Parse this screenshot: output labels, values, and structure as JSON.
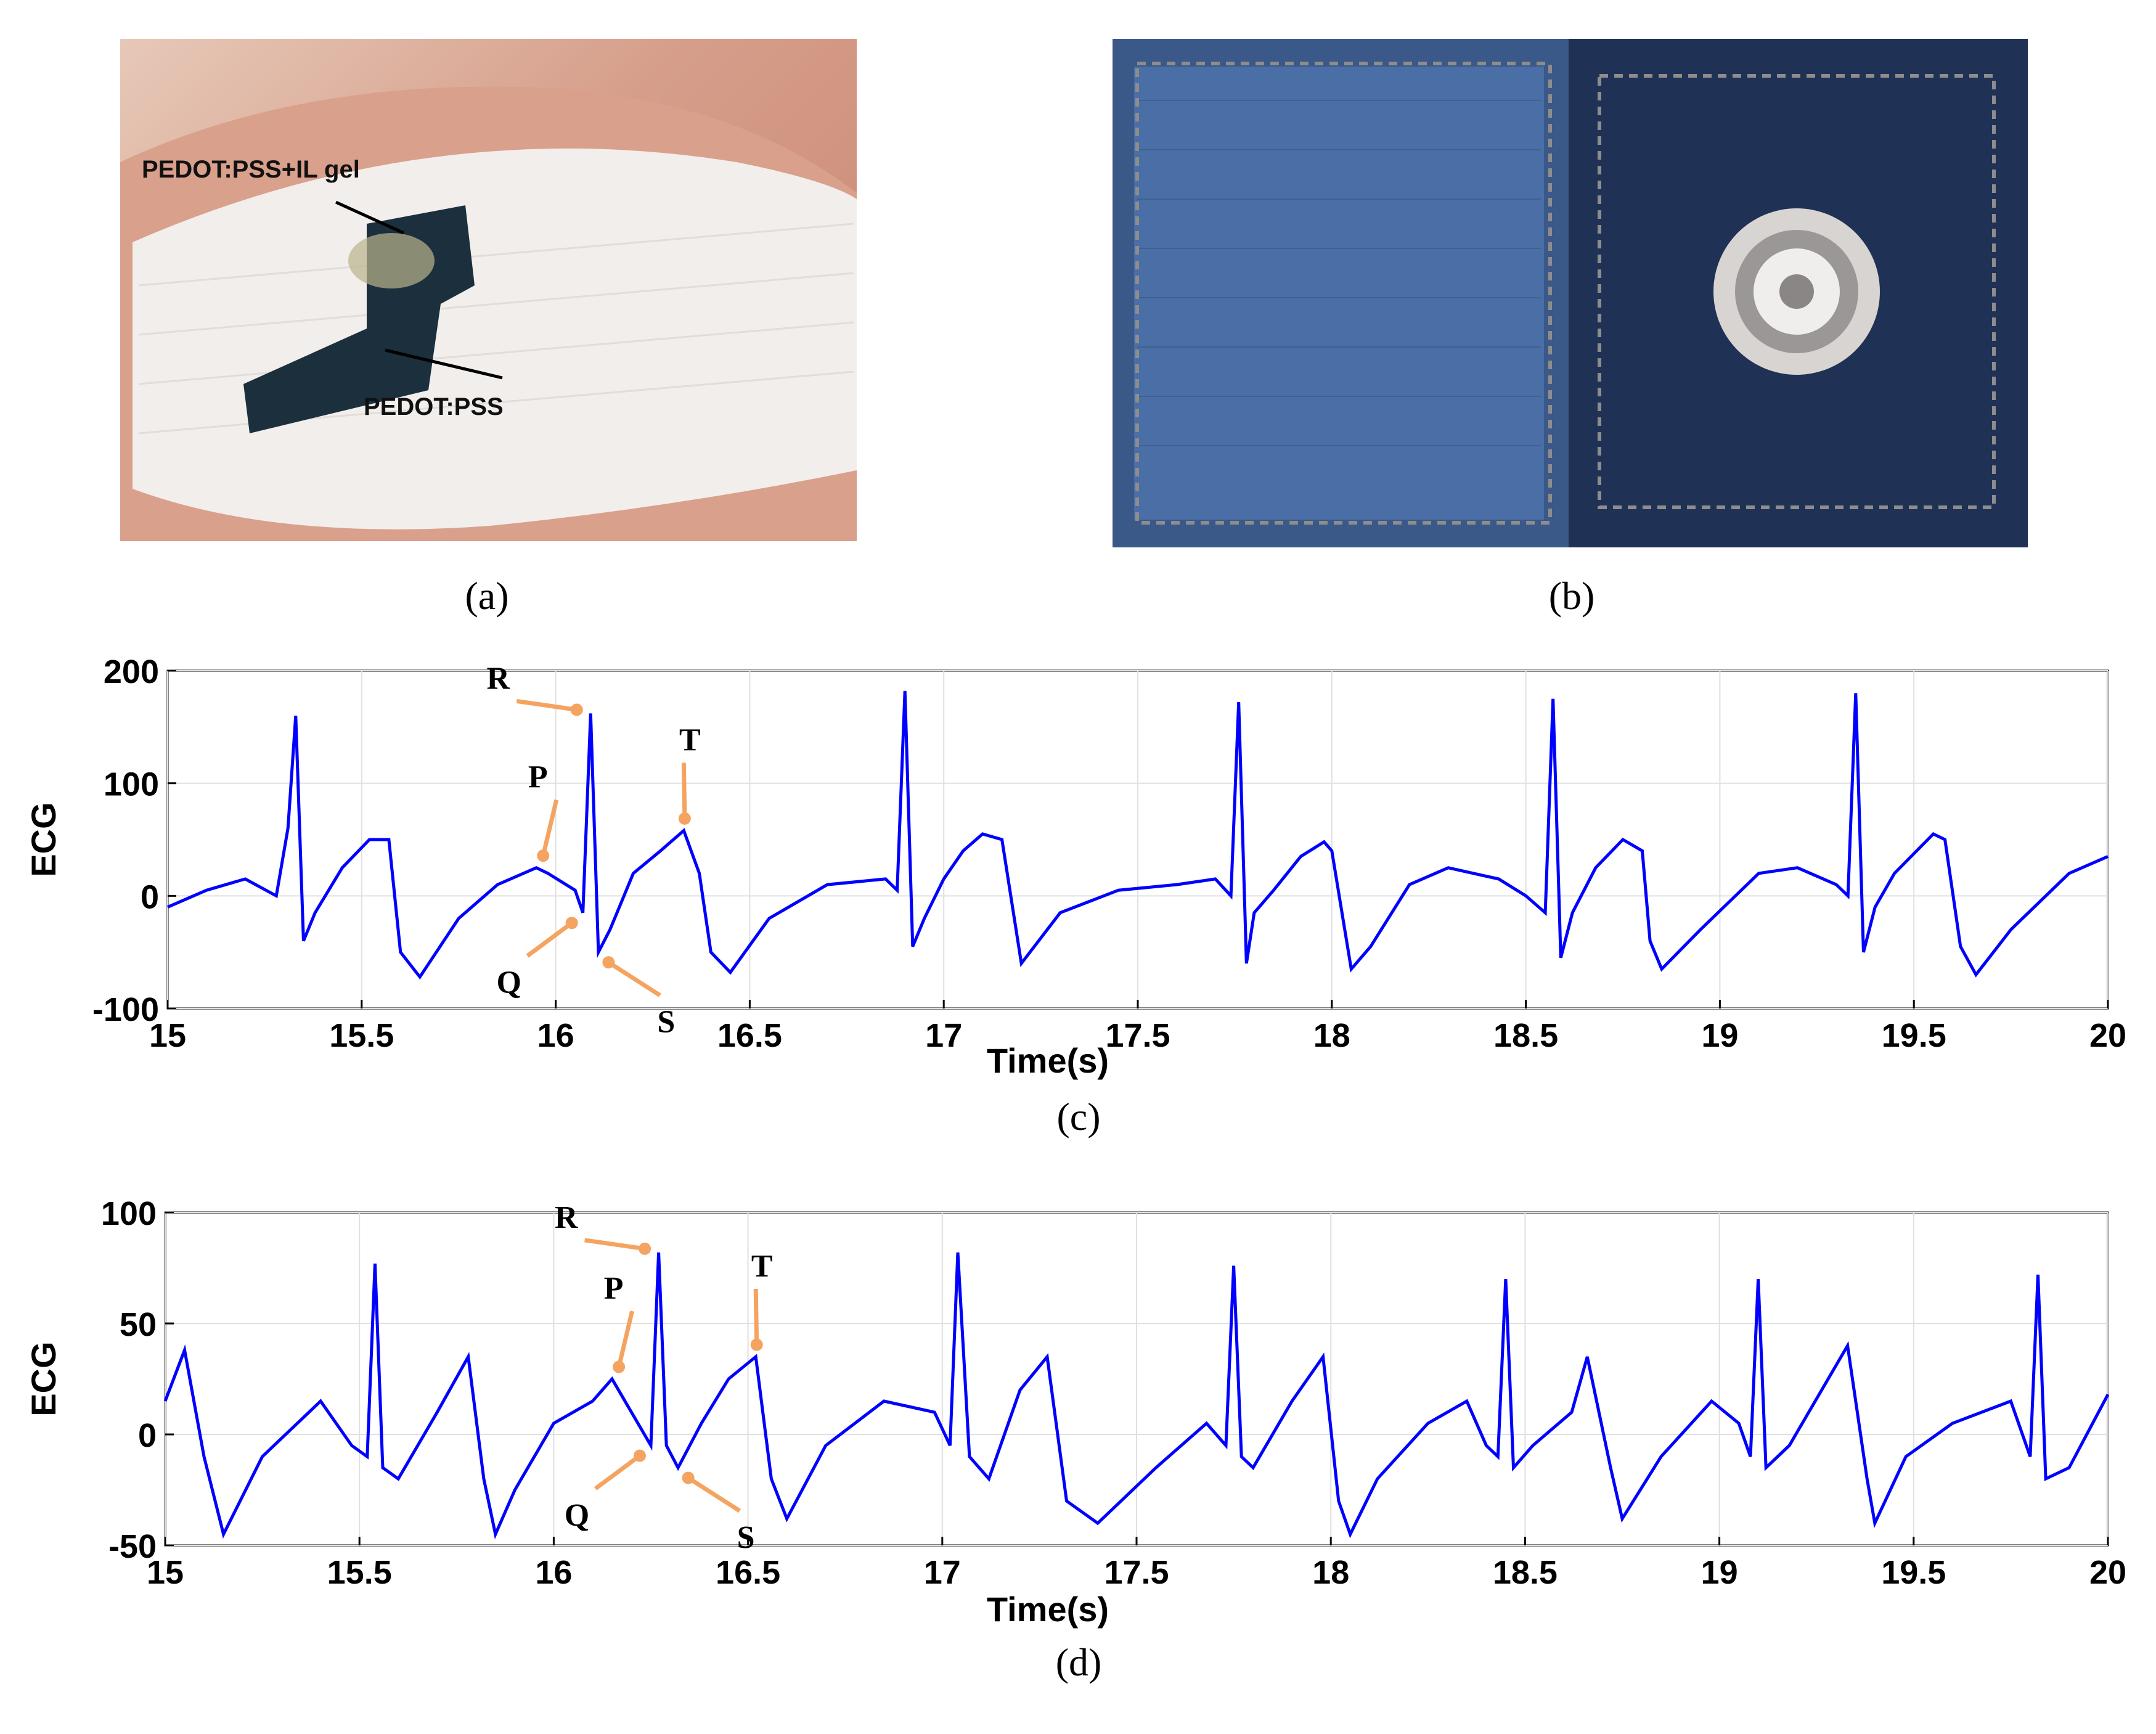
{
  "panels": {
    "a": {
      "caption": "(a)",
      "labels": [
        "PEDOT:PSS+IL gel",
        "PEDOT:PSS"
      ]
    },
    "b": {
      "caption": "(b)"
    },
    "c": {
      "caption": "(c)"
    },
    "d": {
      "caption": "(d)"
    }
  },
  "colors": {
    "signal": "#0000ff",
    "annotation_arrow": "#f4a460",
    "grid": "#e0e0e0"
  },
  "chart_data": [
    {
      "panel": "c",
      "type": "line",
      "xlabel": "Time(s)",
      "ylabel": "ECG",
      "xlim": [
        15,
        20
      ],
      "ylim": [
        -100,
        200
      ],
      "xticks": [
        15,
        15.5,
        16,
        16.5,
        17,
        17.5,
        18,
        18.5,
        19,
        19.5,
        20
      ],
      "yticks": [
        -100,
        0,
        100,
        200
      ],
      "grid": true,
      "series": [
        {
          "x": [
            15.0,
            15.1,
            15.2,
            15.28,
            15.31,
            15.33,
            15.35,
            15.38,
            15.45,
            15.52,
            15.57,
            15.6,
            15.65,
            15.75,
            15.85,
            15.95,
            15.98,
            16.05,
            16.07,
            16.09,
            16.11,
            16.14,
            16.2,
            16.27,
            16.33,
            16.37,
            16.4,
            16.45,
            16.55,
            16.7,
            16.85,
            16.88,
            16.9,
            16.92,
            16.95,
            17.0,
            17.05,
            17.1,
            17.15,
            17.2,
            17.3,
            17.45,
            17.6,
            17.7,
            17.74,
            17.76,
            17.78,
            17.8,
            17.85,
            17.92,
            17.98,
            18.0,
            18.05,
            18.1,
            18.2,
            18.3,
            18.43,
            18.5,
            18.55,
            18.57,
            18.59,
            18.62,
            18.68,
            18.75,
            18.8,
            18.82,
            18.85,
            18.95,
            19.1,
            19.2,
            19.3,
            19.33,
            19.35,
            19.37,
            19.4,
            19.45,
            19.55,
            19.58,
            19.62,
            19.66,
            19.75,
            19.9,
            20.0
          ],
          "y": [
            -10,
            5,
            15,
            0,
            60,
            160,
            -40,
            -15,
            25,
            50,
            50,
            -50,
            -72,
            -20,
            10,
            25,
            20,
            5,
            -15,
            162,
            -50,
            -30,
            20,
            40,
            58,
            20,
            -50,
            -68,
            -20,
            10,
            15,
            5,
            182,
            -45,
            -20,
            15,
            40,
            55,
            50,
            -60,
            -15,
            5,
            10,
            15,
            0,
            172,
            -60,
            -15,
            5,
            35,
            48,
            40,
            -65,
            -45,
            10,
            25,
            15,
            0,
            -15,
            175,
            -55,
            -15,
            25,
            50,
            40,
            -40,
            -65,
            -30,
            20,
            25,
            10,
            0,
            180,
            -50,
            -10,
            20,
            55,
            50,
            -45,
            -70,
            -30,
            20,
            35
          ]
        }
      ],
      "annotations": [
        {
          "label": "R",
          "x": 16.09,
          "y": 162
        },
        {
          "label": "P",
          "x": 15.97,
          "y": 25
        },
        {
          "label": "T",
          "x": 16.33,
          "y": 58
        },
        {
          "label": "Q",
          "x": 16.07,
          "y": -15
        },
        {
          "label": "S",
          "x": 16.11,
          "y": -50
        }
      ]
    },
    {
      "panel": "d",
      "type": "line",
      "xlabel": "Time(s)",
      "ylabel": "ECG",
      "xlim": [
        15,
        20
      ],
      "ylim": [
        -50,
        100
      ],
      "xticks": [
        15,
        15.5,
        16,
        16.5,
        17,
        17.5,
        18,
        18.5,
        19,
        19.5,
        20
      ],
      "yticks": [
        -50,
        0,
        50,
        100
      ],
      "grid": true,
      "series": [
        {
          "x": [
            15.0,
            15.05,
            15.1,
            15.15,
            15.25,
            15.4,
            15.48,
            15.52,
            15.54,
            15.56,
            15.6,
            15.7,
            15.78,
            15.82,
            15.85,
            15.9,
            16.0,
            16.1,
            16.15,
            16.2,
            16.25,
            16.27,
            16.29,
            16.32,
            16.38,
            16.45,
            16.52,
            16.56,
            16.6,
            16.7,
            16.85,
            16.98,
            17.02,
            17.04,
            17.07,
            17.12,
            17.2,
            17.27,
            17.32,
            17.4,
            17.55,
            17.68,
            17.73,
            17.75,
            17.77,
            17.8,
            17.9,
            17.98,
            18.02,
            18.05,
            18.12,
            18.25,
            18.35,
            18.4,
            18.43,
            18.45,
            18.47,
            18.52,
            18.62,
            18.66,
            18.72,
            18.75,
            18.85,
            18.98,
            19.05,
            19.08,
            19.1,
            19.12,
            19.18,
            19.28,
            19.33,
            19.38,
            19.4,
            19.48,
            19.6,
            19.75,
            19.8,
            19.82,
            19.84,
            19.9,
            20.0
          ],
          "y": [
            15,
            38,
            -10,
            -45,
            -10,
            15,
            -5,
            -10,
            77,
            -15,
            -20,
            10,
            35,
            -20,
            -45,
            -25,
            5,
            15,
            25,
            10,
            -5,
            82,
            -5,
            -15,
            5,
            25,
            35,
            -20,
            -38,
            -5,
            15,
            10,
            -5,
            82,
            -10,
            -20,
            20,
            35,
            -30,
            -40,
            -15,
            5,
            -5,
            76,
            -10,
            -15,
            15,
            35,
            -30,
            -45,
            -20,
            5,
            15,
            -5,
            -10,
            70,
            -15,
            -5,
            10,
            35,
            -15,
            -38,
            -10,
            15,
            5,
            -10,
            70,
            -15,
            -5,
            25,
            40,
            -20,
            -40,
            -10,
            5,
            15,
            -10,
            72,
            -20,
            -15,
            18
          ]
        }
      ],
      "annotations": [
        {
          "label": "R",
          "x": 16.27,
          "y": 82
        },
        {
          "label": "P",
          "x": 16.17,
          "y": 25
        },
        {
          "label": "T",
          "x": 16.52,
          "y": 35
        },
        {
          "label": "Q",
          "x": 16.25,
          "y": -5
        },
        {
          "label": "S",
          "x": 16.32,
          "y": -15
        }
      ]
    }
  ]
}
